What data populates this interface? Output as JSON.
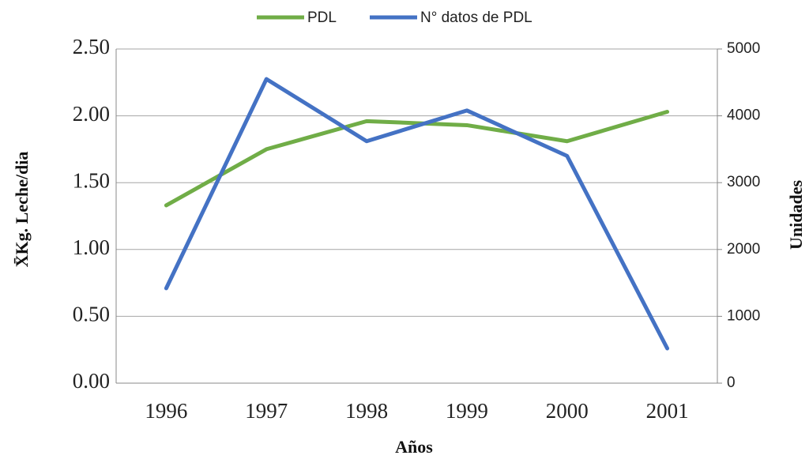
{
  "chart_data": {
    "type": "line",
    "categories": [
      "1996",
      "1997",
      "1998",
      "1999",
      "2000",
      "2001"
    ],
    "series": [
      {
        "name": "PDL",
        "color": "#70ad47",
        "values": [
          1.33,
          1.75,
          1.96,
          1.93,
          1.81,
          2.03
        ]
      },
      {
        "name": "N° datos de PDL",
        "color": "#4472c4",
        "axis": "y2",
        "values": [
          1420,
          4550,
          3620,
          4080,
          3400,
          520
        ]
      }
    ],
    "ylim": [
      0,
      2.5
    ],
    "yticks": [
      {
        "value": 0,
        "label": "0.00"
      },
      {
        "value": 0.5,
        "label": "0.50"
      },
      {
        "value": 1,
        "label": "1.00"
      },
      {
        "value": 1.5,
        "label": "1.50"
      },
      {
        "value": 2,
        "label": "2.00"
      },
      {
        "value": 2.5,
        "label": "2.50"
      }
    ],
    "y2lim": [
      0,
      5000
    ],
    "y2ticks": [
      0,
      1000,
      2000,
      3000,
      4000,
      5000
    ],
    "ylabel": "X̄Kg. Leche/dia",
    "y2label": "Unidades",
    "xlabel": "Años",
    "grid": true,
    "legend": "top"
  }
}
